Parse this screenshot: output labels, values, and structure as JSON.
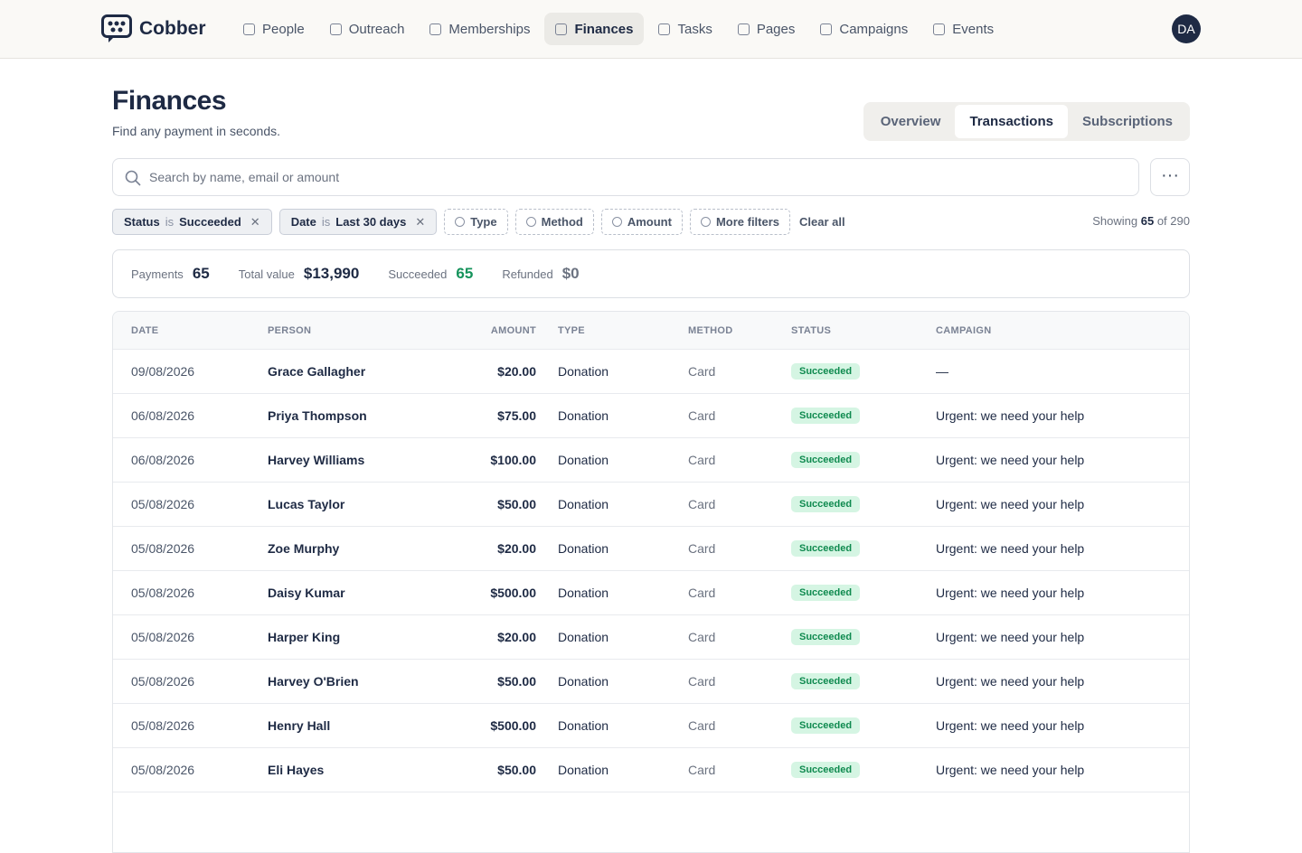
{
  "nav": {
    "brand": "Cobber",
    "items": [
      "People",
      "Outreach",
      "Memberships",
      "Finances",
      "Tasks",
      "Pages",
      "Campaigns",
      "Events"
    ],
    "avatar": "DA"
  },
  "header": {
    "title": "Finances",
    "subtitle": "Find any payment in seconds.",
    "tabs": [
      "Overview",
      "Transactions",
      "Subscriptions"
    ]
  },
  "search": {
    "placeholder": "Search by name, email or amount"
  },
  "filters": [
    {
      "field": "Status",
      "op": "is",
      "value": "Succeeded"
    },
    {
      "field": "Date",
      "op": "is",
      "value": "Last 30 days"
    }
  ],
  "add_filters": [
    "Type",
    "Method",
    "Amount",
    "More filters"
  ],
  "clear": "Clear all",
  "showing": {
    "prefix": "Showing",
    "count": 65,
    "middle": "of",
    "total": 290
  },
  "summary": [
    {
      "label": "Payments",
      "value": "65"
    },
    {
      "label": "Total value",
      "value": "$13,990"
    },
    {
      "label": "Succeeded",
      "value": "65"
    },
    {
      "label": "Refunded",
      "value": "$0"
    }
  ],
  "table": {
    "columns": [
      "DATE",
      "PERSON",
      "AMOUNT",
      "TYPE",
      "METHOD",
      "STATUS",
      "CAMPAIGN"
    ],
    "rows": [
      [
        "09/08/2026",
        "Grace Gallagher",
        "$20.00",
        "Donation",
        "Card",
        "Succeeded",
        "—"
      ],
      [
        "06/08/2026",
        "Priya Thompson",
        "$75.00",
        "Donation",
        "Card",
        "Succeeded",
        "Urgent: we need your help"
      ],
      [
        "06/08/2026",
        "Harvey Williams",
        "$100.00",
        "Donation",
        "Card",
        "Succeeded",
        "Urgent: we need your help"
      ],
      [
        "05/08/2026",
        "Lucas Taylor",
        "$50.00",
        "Donation",
        "Card",
        "Succeeded",
        "Urgent: we need your help"
      ],
      [
        "05/08/2026",
        "Zoe Murphy",
        "$20.00",
        "Donation",
        "Card",
        "Succeeded",
        "Urgent: we need your help"
      ],
      [
        "05/08/2026",
        "Daisy Kumar",
        "$500.00",
        "Donation",
        "Card",
        "Succeeded",
        "Urgent: we need your help"
      ],
      [
        "05/08/2026",
        "Harper King",
        "$20.00",
        "Donation",
        "Card",
        "Succeeded",
        "Urgent: we need your help"
      ],
      [
        "05/08/2026",
        "Harvey O'Brien",
        "$50.00",
        "Donation",
        "Card",
        "Succeeded",
        "Urgent: we need your help"
      ],
      [
        "05/08/2026",
        "Henry Hall",
        "$500.00",
        "Donation",
        "Card",
        "Succeeded",
        "Urgent: we need your help"
      ],
      [
        "05/08/2026",
        "Eli Hayes",
        "$50.00",
        "Donation",
        "Card",
        "Succeeded",
        "Urgent: we need your help"
      ]
    ]
  }
}
